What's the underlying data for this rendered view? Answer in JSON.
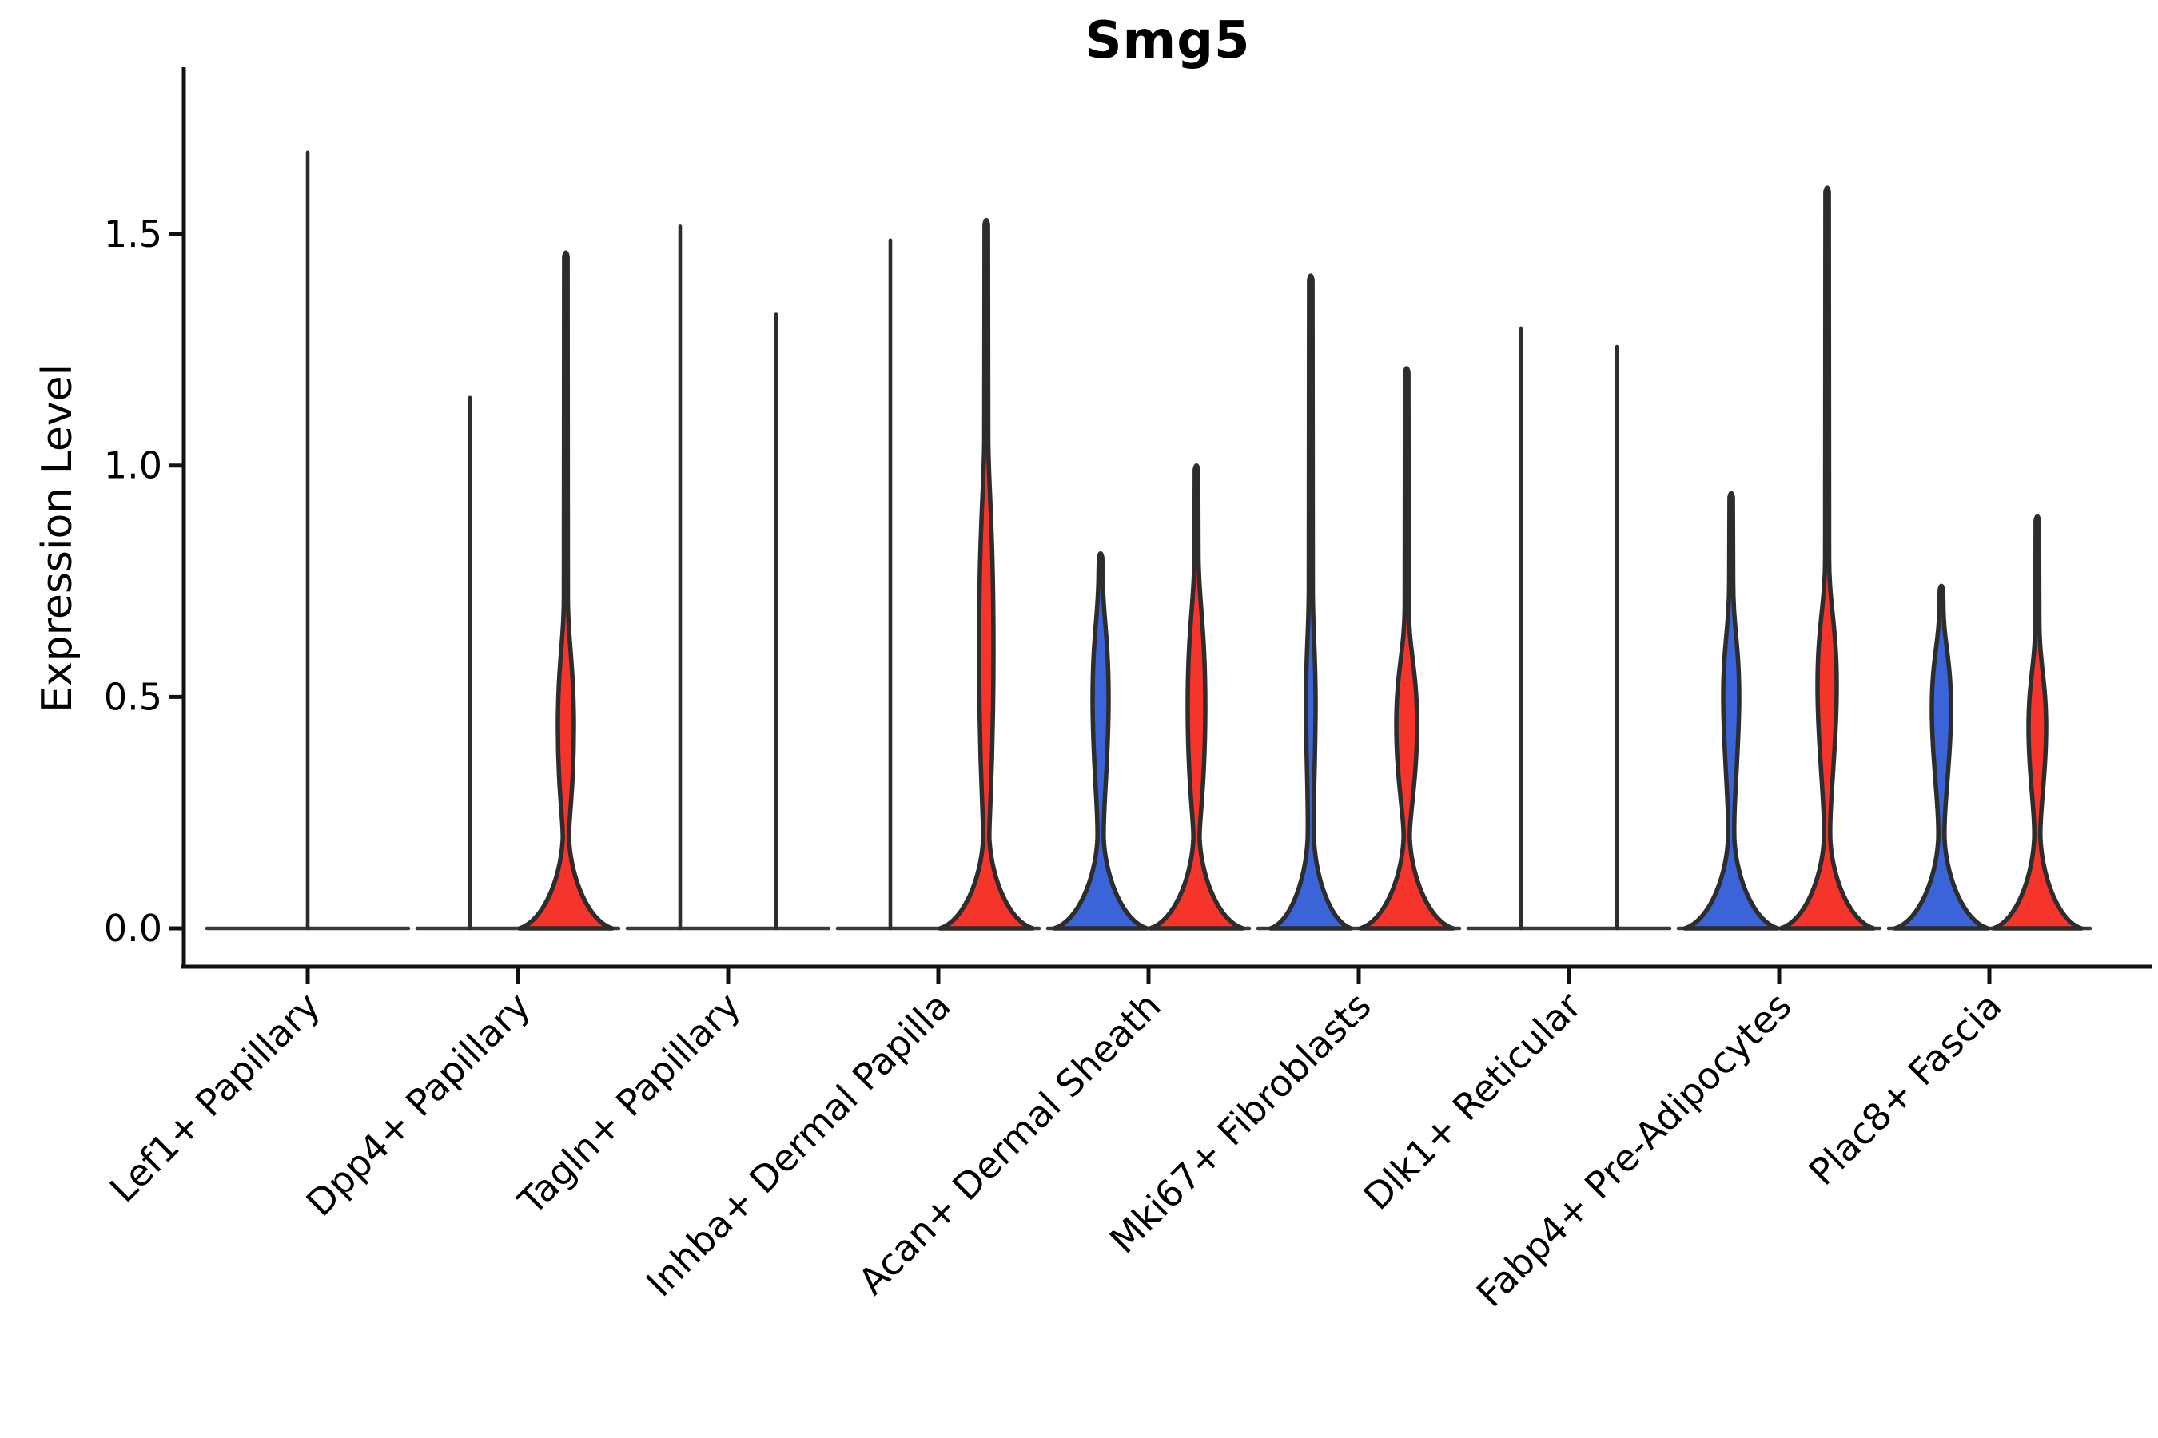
{
  "title": "Smg5",
  "y_axis": {
    "label": "Expression Level",
    "tick_labels": [
      "0.0",
      "0.5",
      "1.0",
      "1.5"
    ],
    "tick_values": [
      0,
      0.5,
      1.0,
      1.5
    ]
  },
  "colors": {
    "blue": "#3c64d9",
    "red": "#f5342c",
    "outline": "#2d2d2d",
    "zero_line": "#3a3a3a",
    "axis": "#111111",
    "text": "#000000"
  },
  "chart_data": {
    "type": "violin",
    "title": "Smg5",
    "ylabel": "Expression Level",
    "ylim": [
      0,
      1.86
    ],
    "yticks": [
      0,
      0.5,
      1.0,
      1.5
    ],
    "grid": false,
    "legend": "none",
    "split_colors": {
      "left": "#3c64d9",
      "right": "#f5342c"
    },
    "categories": [
      "Lef1+ Papillary",
      "Dpp4+ Papillary",
      "Tagln+ Papillary",
      "Inhba+ Dermal Papilla",
      "Acan+ Dermal Sheath",
      "Mki67+ Fibroblasts",
      "Dlk1+ Reticular",
      "Fabp4+ Pre-Adipocytes",
      "Plac8+ Fascia"
    ],
    "groups": [
      {
        "category": "Lef1+ Papillary",
        "violins": [
          {
            "side": "center",
            "color": "dark",
            "shape": "flat",
            "max": 1.68
          }
        ]
      },
      {
        "category": "Dpp4+ Papillary",
        "violins": [
          {
            "side": "left",
            "color": "blue",
            "shape": "flat",
            "max": 1.15
          },
          {
            "side": "right",
            "color": "red",
            "shape": "bulged",
            "max": 1.46,
            "bulge": [
              0.25,
              0.62
            ],
            "bulge_halfwidth": 10,
            "base_halfwidth": 58
          }
        ]
      },
      {
        "category": "Tagln+ Papillary",
        "violins": [
          {
            "side": "left",
            "color": "blue",
            "shape": "flat",
            "max": 1.52
          },
          {
            "side": "right",
            "color": "red",
            "shape": "flat",
            "max": 1.33
          }
        ]
      },
      {
        "category": "Inhba+ Dermal Papilla",
        "violins": [
          {
            "side": "left",
            "color": "blue",
            "shape": "flat",
            "max": 1.49
          },
          {
            "side": "right",
            "color": "red",
            "shape": "bulged",
            "max": 1.53,
            "bulge": [
              0.24,
              0.96
            ],
            "bulge_halfwidth": 9,
            "base_halfwidth": 58
          }
        ]
      },
      {
        "category": "Acan+ Dermal Sheath",
        "violins": [
          {
            "side": "left",
            "color": "blue",
            "shape": "bulged",
            "max": 0.81,
            "bulge": [
              0.31,
              0.68
            ],
            "bulge_halfwidth": 10,
            "base_halfwidth": 58
          },
          {
            "side": "right",
            "color": "red",
            "shape": "bulged",
            "max": 1.0,
            "bulge": [
              0.25,
              0.71
            ],
            "bulge_halfwidth": 11,
            "base_halfwidth": 58
          }
        ]
      },
      {
        "category": "Mki67+ Fibroblasts",
        "violins": [
          {
            "side": "left",
            "color": "blue",
            "shape": "bulged",
            "max": 1.41,
            "bulge": [
              0.33,
              0.64
            ],
            "bulge_halfwidth": 6,
            "base_halfwidth": 50
          },
          {
            "side": "right",
            "color": "red",
            "shape": "bulged",
            "max": 1.21,
            "bulge": [
              0.28,
              0.6
            ],
            "bulge_halfwidth": 13,
            "base_halfwidth": 58
          }
        ]
      },
      {
        "category": "Dlk1+ Reticular",
        "violins": [
          {
            "side": "left",
            "color": "blue",
            "shape": "flat",
            "max": 1.3
          },
          {
            "side": "right",
            "color": "red",
            "shape": "flat",
            "max": 1.26
          }
        ]
      },
      {
        "category": "Fabp4+ Pre-Adipocytes",
        "violins": [
          {
            "side": "left",
            "color": "blue",
            "shape": "bulged",
            "max": 0.94,
            "bulge": [
              0.35,
              0.65
            ],
            "bulge_halfwidth": 10,
            "base_halfwidth": 58
          },
          {
            "side": "right",
            "color": "red",
            "shape": "bulged",
            "max": 1.6,
            "bulge": [
              0.35,
              0.7
            ],
            "bulge_halfwidth": 12,
            "base_halfwidth": 58
          }
        ]
      },
      {
        "category": "Plac8+ Fascia",
        "violins": [
          {
            "side": "left",
            "color": "blue",
            "shape": "bulged",
            "max": 0.74,
            "bulge": [
              0.33,
              0.62
            ],
            "bulge_halfwidth": 12,
            "base_halfwidth": 58
          },
          {
            "side": "right",
            "color": "red",
            "shape": "bulged",
            "max": 0.89,
            "bulge": [
              0.3,
              0.57
            ],
            "bulge_halfwidth": 11,
            "base_halfwidth": 55
          }
        ]
      }
    ]
  }
}
